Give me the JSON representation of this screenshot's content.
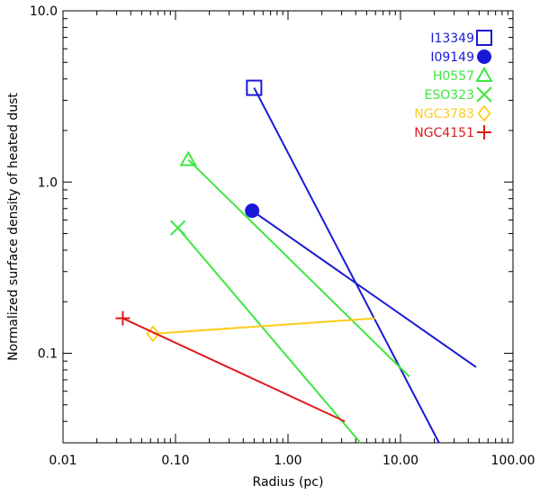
{
  "chart_data": {
    "type": "line",
    "title": "",
    "xlabel": "Radius (pc)",
    "ylabel": "Normalized surface density of heated dust",
    "xscale": "log",
    "yscale": "log",
    "xlim": [
      0.01,
      100
    ],
    "ylim": [
      0.03,
      10
    ],
    "xticks": [
      {
        "value": 0.01,
        "label": "0.01"
      },
      {
        "value": 0.1,
        "label": "0.10"
      },
      {
        "value": 1,
        "label": "1.00"
      },
      {
        "value": 10,
        "label": "10.00"
      },
      {
        "value": 100,
        "label": "100.00"
      }
    ],
    "yticks": [
      {
        "value": 0.1,
        "label": "0.1"
      },
      {
        "value": 1,
        "label": "1.0"
      },
      {
        "value": 10,
        "label": "10.0"
      }
    ],
    "legend_position": "top-right",
    "series": [
      {
        "name": "I13349",
        "color": "#1a1ad6",
        "marker": "open-square",
        "marker_point": [
          0.5,
          3.55
        ],
        "line": [
          [
            0.5,
            3.55
          ],
          [
            22,
            0.03
          ]
        ]
      },
      {
        "name": "I09149",
        "color": "#1a1ad6",
        "marker": "filled-circle",
        "marker_point": [
          0.48,
          0.68
        ],
        "line": [
          [
            0.48,
            0.68
          ],
          [
            47,
            0.083
          ]
        ]
      },
      {
        "name": "H0557",
        "color": "#3ee63e",
        "marker": "open-triangle",
        "marker_point": [
          0.13,
          1.35
        ],
        "line": [
          [
            0.13,
            1.35
          ],
          [
            12,
            0.073
          ]
        ]
      },
      {
        "name": "ESO323",
        "color": "#3ee63e",
        "marker": "x-cross",
        "marker_point": [
          0.105,
          0.54
        ],
        "line": [
          [
            0.105,
            0.54
          ],
          [
            4.4,
            0.03
          ]
        ]
      },
      {
        "name": "NGC3783",
        "color": "#ffcc1a",
        "marker": "open-diamond",
        "marker_point": [
          0.063,
          0.13
        ],
        "line": [
          [
            0.063,
            0.13
          ],
          [
            6,
            0.16
          ]
        ]
      },
      {
        "name": "NGC4151",
        "color": "#e01a1a",
        "marker": "plus",
        "marker_point": [
          0.034,
          0.16
        ],
        "line": [
          [
            0.034,
            0.16
          ],
          [
            3.2,
            0.04
          ]
        ]
      }
    ]
  }
}
